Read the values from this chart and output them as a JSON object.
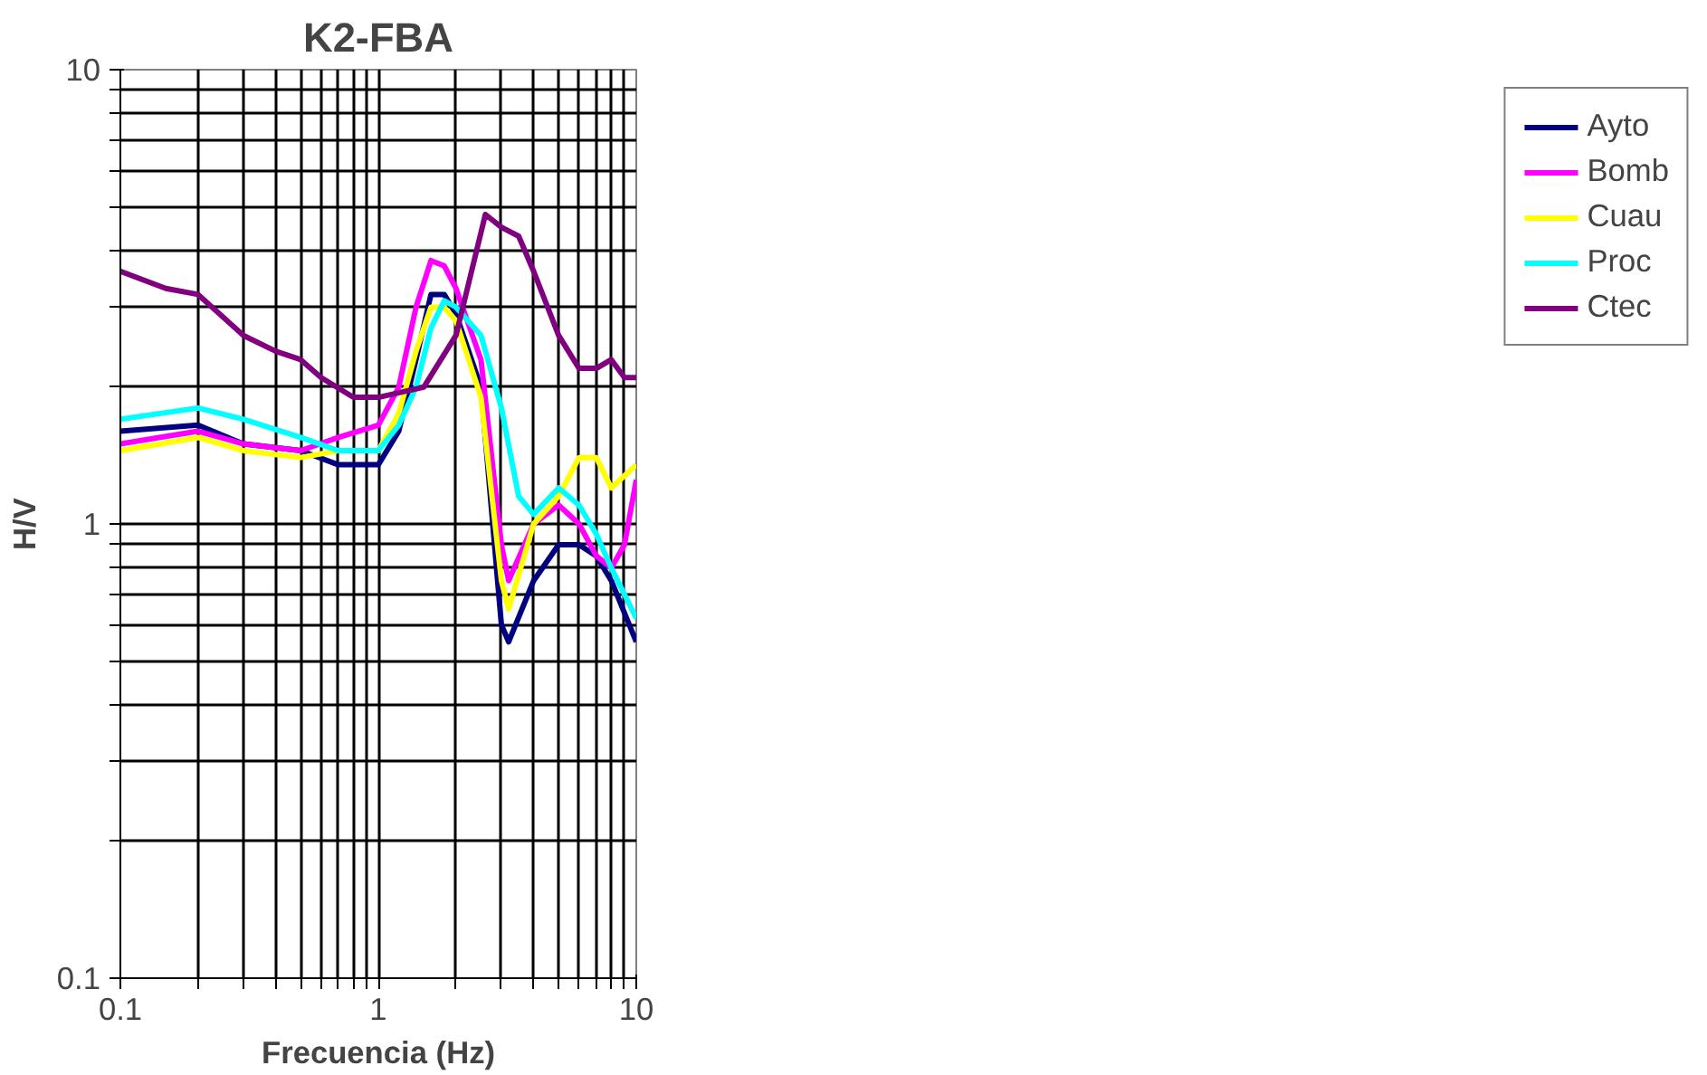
{
  "chart_data": {
    "type": "line",
    "title": "K2-FBA",
    "xlabel": "Frecuencia (Hz)",
    "ylabel": "H/V",
    "log": "xy",
    "grid": true,
    "legend": "right",
    "marker": "none",
    "line_style": "solid",
    "xlim": [
      0.1,
      10
    ],
    "ylim": [
      0.1,
      10
    ],
    "xticks": [
      0.1,
      {
        "value": 0.2,
        "label": null
      },
      {
        "value": 0.3,
        "label": null
      },
      {
        "value": 0.4,
        "label": null
      },
      {
        "value": 0.5,
        "label": null
      },
      {
        "value": 0.6,
        "label": null
      },
      {
        "value": 0.7,
        "label": null
      },
      {
        "value": 0.8,
        "label": null
      },
      {
        "value": 0.9,
        "label": null
      },
      1,
      {
        "value": 2,
        "label": null
      },
      {
        "value": 3,
        "label": null
      },
      {
        "value": 4,
        "label": null
      },
      {
        "value": 5,
        "label": null
      },
      {
        "value": 6,
        "label": null
      },
      {
        "value": 7,
        "label": null
      },
      {
        "value": 8,
        "label": null
      },
      {
        "value": 9,
        "label": null
      },
      10
    ],
    "yticks": [
      0.1,
      {
        "value": 0.2,
        "label": null
      },
      {
        "value": 0.3,
        "label": null
      },
      {
        "value": 0.4,
        "label": null
      },
      {
        "value": 0.5,
        "label": null
      },
      {
        "value": 0.6,
        "label": null
      },
      {
        "value": 0.7,
        "label": null
      },
      {
        "value": 0.8,
        "label": null
      },
      {
        "value": 0.9,
        "label": null
      },
      1,
      {
        "value": 2,
        "label": null
      },
      {
        "value": 3,
        "label": null
      },
      {
        "value": 4,
        "label": null
      },
      {
        "value": 5,
        "label": null
      },
      {
        "value": 6,
        "label": null
      },
      {
        "value": 7,
        "label": null
      },
      {
        "value": 8,
        "label": null
      },
      {
        "value": 9,
        "label": null
      },
      10
    ],
    "series": [
      {
        "name": "Ayto",
        "color": "#000080",
        "x": [
          0.1,
          0.2,
          0.3,
          0.5,
          0.7,
          1,
          1.2,
          1.4,
          1.6,
          1.8,
          2,
          2.5,
          3,
          3.2,
          4,
          5,
          6,
          7,
          8,
          10
        ],
        "values": [
          1.6,
          1.65,
          1.5,
          1.45,
          1.35,
          1.35,
          1.6,
          2.3,
          3.2,
          3.2,
          2.9,
          2.0,
          0.6,
          0.55,
          0.75,
          0.9,
          0.9,
          0.85,
          0.75,
          0.55
        ]
      },
      {
        "name": "Bomb",
        "color": "#ff00ff",
        "x": [
          0.1,
          0.2,
          0.3,
          0.5,
          0.7,
          1,
          1.2,
          1.4,
          1.6,
          1.8,
          2,
          2.5,
          3,
          3.2,
          4,
          5,
          6,
          7,
          8,
          9,
          10
        ],
        "values": [
          1.5,
          1.6,
          1.5,
          1.45,
          1.55,
          1.65,
          2.0,
          3.0,
          3.8,
          3.7,
          3.3,
          2.3,
          0.9,
          0.75,
          1.0,
          1.1,
          1.0,
          0.85,
          0.8,
          0.9,
          1.25
        ]
      },
      {
        "name": "Cuau",
        "color": "#ffff00",
        "x": [
          0.1,
          0.2,
          0.3,
          0.5,
          0.7,
          1,
          1.2,
          1.4,
          1.6,
          1.8,
          2,
          2.5,
          3,
          3.2,
          4,
          5,
          6,
          7,
          8,
          10
        ],
        "values": [
          1.45,
          1.55,
          1.45,
          1.4,
          1.45,
          1.45,
          1.75,
          2.4,
          3.0,
          3.0,
          2.8,
          1.9,
          0.75,
          0.65,
          1.0,
          1.15,
          1.4,
          1.4,
          1.2,
          1.35
        ]
      },
      {
        "name": "Proc",
        "color": "#00ffff",
        "x": [
          0.1,
          0.2,
          0.3,
          0.5,
          0.7,
          1,
          1.2,
          1.4,
          1.6,
          1.8,
          2,
          2.5,
          3,
          3.5,
          4,
          5,
          6,
          7,
          8,
          10
        ],
        "values": [
          1.7,
          1.8,
          1.7,
          1.55,
          1.45,
          1.45,
          1.65,
          2.0,
          2.7,
          3.1,
          3.0,
          2.6,
          1.8,
          1.15,
          1.05,
          1.2,
          1.1,
          0.95,
          0.8,
          0.62
        ]
      },
      {
        "name": "Ctec",
        "color": "#800080",
        "x": [
          0.1,
          0.15,
          0.2,
          0.3,
          0.4,
          0.5,
          0.6,
          0.8,
          1,
          1.5,
          2,
          2.6,
          3,
          3.5,
          4,
          5,
          6,
          7,
          8,
          9,
          10
        ],
        "values": [
          3.6,
          3.3,
          3.2,
          2.6,
          2.4,
          2.3,
          2.1,
          1.9,
          1.9,
          2.0,
          2.6,
          4.8,
          4.5,
          4.3,
          3.6,
          2.6,
          2.2,
          2.2,
          2.3,
          2.1,
          2.1
        ]
      }
    ]
  }
}
